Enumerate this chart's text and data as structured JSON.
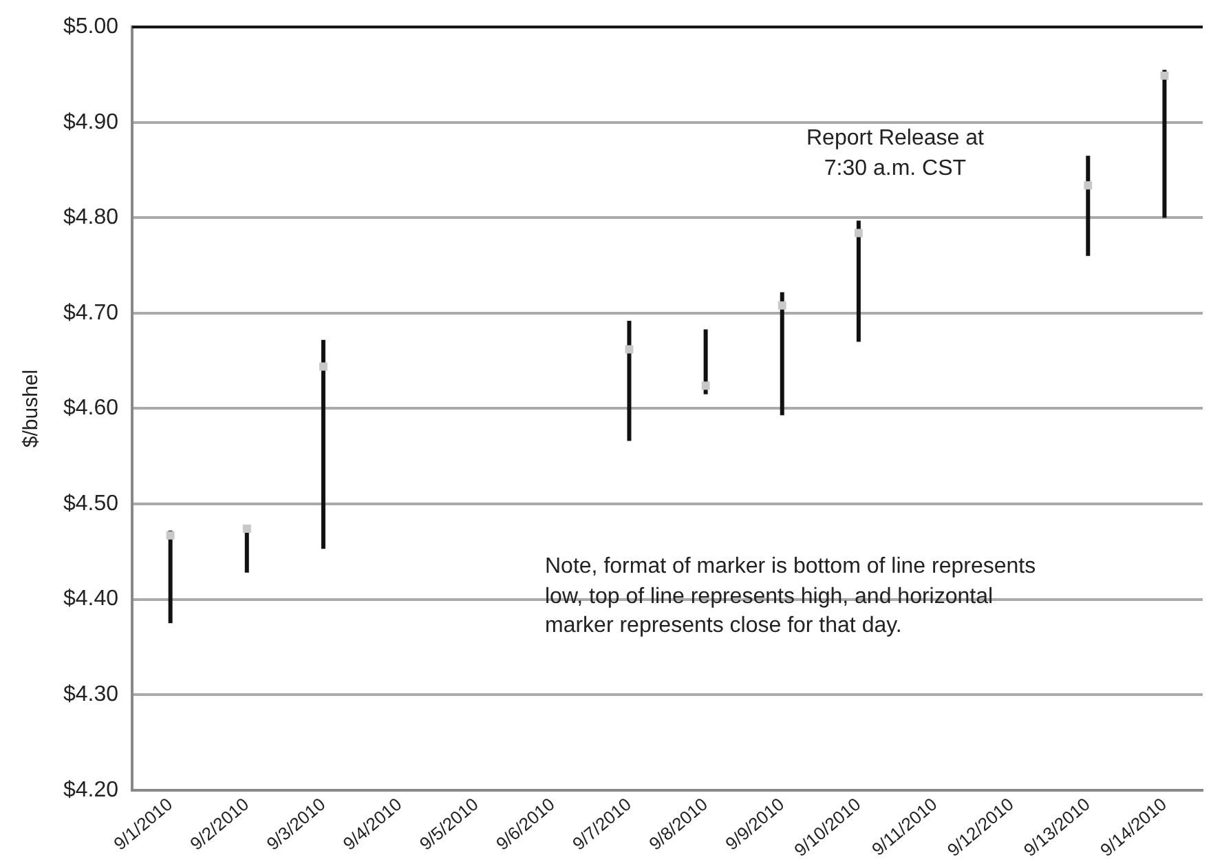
{
  "chart_data": {
    "type": "scatter",
    "ylabel": "$/bushel",
    "categories": [
      "9/1/2010",
      "9/2/2010",
      "9/3/2010",
      "9/4/2010",
      "9/5/2010",
      "9/6/2010",
      "9/7/2010",
      "9/8/2010",
      "9/9/2010",
      "9/10/2010",
      "9/11/2010",
      "9/12/2010",
      "9/13/2010",
      "9/14/2010"
    ],
    "series": [
      {
        "color": "#c8c8c8",
        "values": [
          4.467,
          4.474,
          4.644,
          null,
          null,
          null,
          4.662,
          4.624,
          4.708,
          4.784,
          null,
          null,
          4.834,
          4.949
        ],
        "errors": [
          [
            4.375,
            4.472
          ],
          [
            4.428,
            4.478
          ],
          [
            4.453,
            4.672
          ],
          null,
          null,
          null,
          [
            4.566,
            4.692
          ],
          [
            4.615,
            4.683
          ],
          [
            4.593,
            4.722
          ],
          [
            4.67,
            4.797
          ],
          null,
          null,
          [
            4.76,
            4.865
          ],
          [
            4.8,
            4.955
          ]
        ]
      }
    ],
    "ylim": [
      4.2,
      5.0
    ],
    "yticks": [
      {
        "value": 4.2,
        "label": "$4.20"
      },
      {
        "value": 4.3,
        "label": "$4.30"
      },
      {
        "value": 4.4,
        "label": "$4.40"
      },
      {
        "value": 4.5,
        "label": "$4.50"
      },
      {
        "value": 4.6,
        "label": "$4.60"
      },
      {
        "value": 4.7,
        "label": "$4.70"
      },
      {
        "value": 4.8,
        "label": "$4.80"
      },
      {
        "value": 4.9,
        "label": "$4.90"
      },
      {
        "value": 5.0,
        "label": "$5.00"
      }
    ],
    "grid": "y",
    "legend": false,
    "marker": "square",
    "annotations": [
      "Report Release at\n7:30 a.m. CST",
      "Note, format of marker is bottom of line represents\nlow, top of line represents high, and horizontal\nmarker represents close for that day."
    ]
  }
}
